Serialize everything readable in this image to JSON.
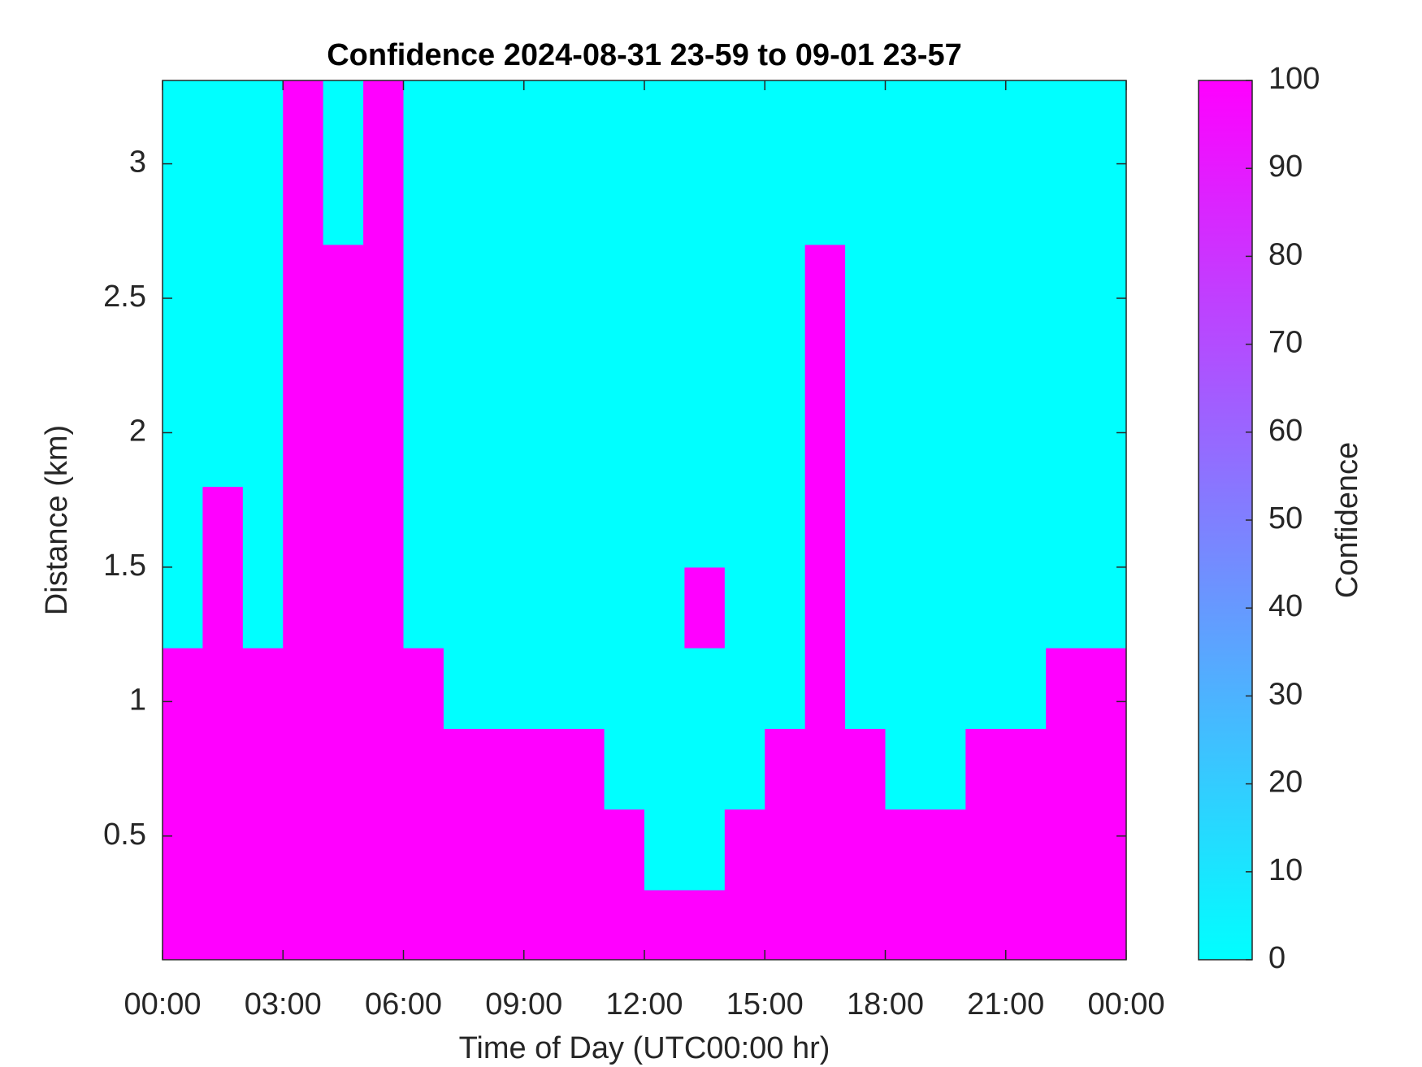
{
  "chart_data": {
    "type": "heatmap",
    "title": "Confidence 2024-08-31 23-59 to 09-01 23-57",
    "x_label": "Time of Day (UTC00:00 hr)",
    "y_label": "Distance (km)",
    "colorbar_label": "Confidence",
    "x_bins": [
      0,
      1,
      2,
      3,
      4,
      5,
      6,
      7,
      8,
      9,
      10,
      11,
      12,
      13,
      14,
      15,
      16,
      17,
      18,
      19,
      20,
      21,
      22,
      23,
      24
    ],
    "y_bins": [
      0.04,
      0.3,
      0.6,
      0.9,
      1.2,
      1.5,
      1.8,
      2.1,
      2.4,
      2.7,
      3.0,
      3.31
    ],
    "z": [
      [
        100,
        100,
        100,
        100,
        100,
        100,
        100,
        100,
        100,
        100,
        100,
        100,
        100,
        100,
        100,
        100,
        100,
        100,
        100,
        100,
        100,
        100,
        100,
        100
      ],
      [
        100,
        100,
        100,
        100,
        100,
        100,
        100,
        100,
        100,
        100,
        100,
        100,
        0,
        0,
        100,
        100,
        100,
        100,
        100,
        100,
        100,
        100,
        100,
        100
      ],
      [
        100,
        100,
        100,
        100,
        100,
        100,
        100,
        100,
        100,
        100,
        100,
        0,
        0,
        0,
        0,
        100,
        100,
        100,
        0,
        0,
        100,
        100,
        100,
        100
      ],
      [
        100,
        100,
        100,
        100,
        100,
        100,
        100,
        0,
        0,
        0,
        0,
        0,
        0,
        0,
        0,
        0,
        100,
        0,
        0,
        0,
        0,
        0,
        100,
        100
      ],
      [
        0,
        100,
        0,
        100,
        100,
        100,
        0,
        0,
        0,
        0,
        0,
        0,
        0,
        100,
        0,
        0,
        100,
        0,
        0,
        0,
        0,
        0,
        0,
        0
      ],
      [
        0,
        100,
        0,
        100,
        100,
        100,
        0,
        0,
        0,
        0,
        0,
        0,
        0,
        0,
        0,
        0,
        100,
        0,
        0,
        0,
        0,
        0,
        0,
        0
      ],
      [
        0,
        0,
        0,
        100,
        100,
        100,
        0,
        0,
        0,
        0,
        0,
        0,
        0,
        0,
        0,
        0,
        100,
        0,
        0,
        0,
        0,
        0,
        0,
        0
      ],
      [
        0,
        0,
        0,
        100,
        100,
        100,
        0,
        0,
        0,
        0,
        0,
        0,
        0,
        0,
        0,
        0,
        100,
        0,
        0,
        0,
        0,
        0,
        0,
        0
      ],
      [
        0,
        0,
        0,
        100,
        100,
        100,
        0,
        0,
        0,
        0,
        0,
        0,
        0,
        0,
        0,
        0,
        100,
        0,
        0,
        0,
        0,
        0,
        0,
        0
      ],
      [
        0,
        0,
        0,
        100,
        0,
        100,
        0,
        0,
        0,
        0,
        0,
        0,
        0,
        0,
        0,
        0,
        0,
        0,
        0,
        0,
        0,
        0,
        0,
        0
      ],
      [
        0,
        0,
        0,
        100,
        0,
        100,
        0,
        0,
        0,
        0,
        0,
        0,
        0,
        0,
        0,
        0,
        0,
        0,
        0,
        0,
        0,
        0,
        0,
        0
      ]
    ],
    "colormap": [
      "#00ffff",
      "#ff00ff"
    ],
    "clim": [
      0,
      100
    ],
    "cticks": [
      0,
      10,
      20,
      30,
      40,
      50,
      60,
      70,
      80,
      90,
      100
    ],
    "xlim": [
      0,
      24
    ],
    "xticks": [
      {
        "value": 0,
        "label": "00:00"
      },
      {
        "value": 3,
        "label": "03:00"
      },
      {
        "value": 6,
        "label": "06:00"
      },
      {
        "value": 9,
        "label": "09:00"
      },
      {
        "value": 12,
        "label": "12:00"
      },
      {
        "value": 15,
        "label": "15:00"
      },
      {
        "value": 18,
        "label": "18:00"
      },
      {
        "value": 21,
        "label": "21:00"
      },
      {
        "value": 24,
        "label": "00:00"
      }
    ],
    "ylim": [
      0.04,
      3.31
    ],
    "yticks": [
      0.5,
      1,
      1.5,
      2,
      2.5,
      3
    ]
  }
}
